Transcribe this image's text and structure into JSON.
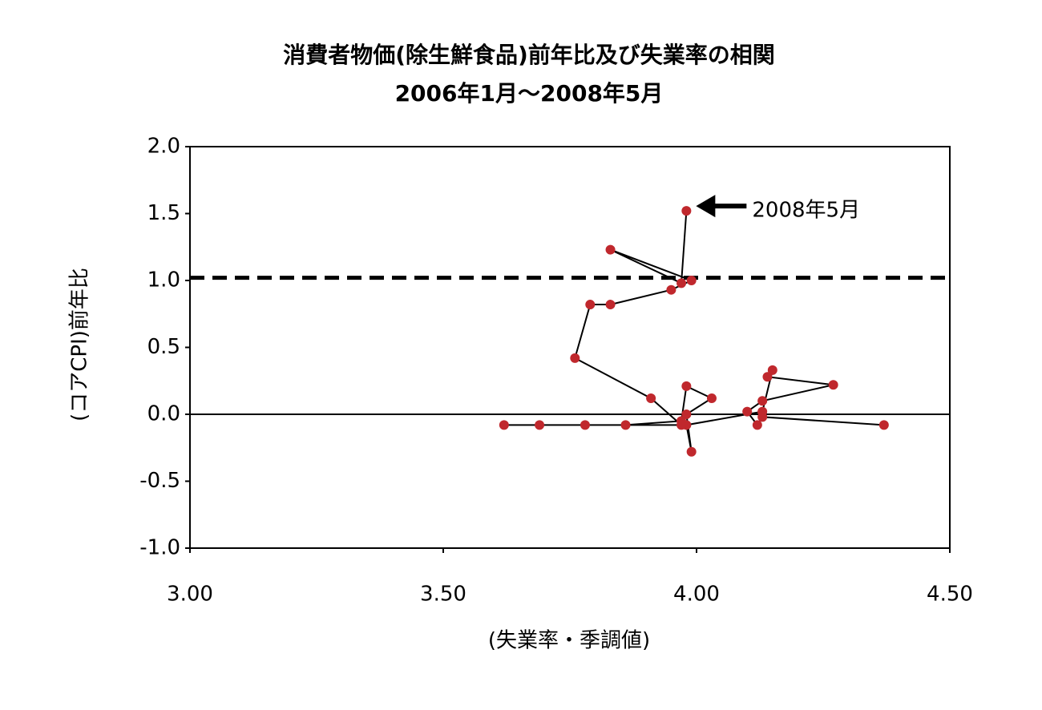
{
  "chart_data": {
    "type": "scatter",
    "title": "消費者物価(除生鮮食品)前年比及び失業率の相関",
    "subtitle": "2006年1月～2008年5月",
    "x_label": "(失業率・季調値)",
    "y_label": "(コアCPI)前年比",
    "annotation": "2008年5月",
    "connected": true,
    "x": [
      4.37,
      4.13,
      4.12,
      4.1,
      4.13,
      4.27,
      4.14,
      4.15,
      4.13,
      3.98,
      3.99,
      3.98,
      4.03,
      3.98,
      3.97,
      3.86,
      3.78,
      3.69,
      3.62,
      3.97,
      3.91,
      3.76,
      3.79,
      3.83,
      3.95,
      3.99,
      3.83,
      3.97,
      3.98
    ],
    "series": [
      {
        "color": "#c0282d",
        "line_color": "#000000",
        "values": [
          -0.08,
          -0.02,
          -0.08,
          0.02,
          0.1,
          0.22,
          0.28,
          0.33,
          0.02,
          -0.08,
          -0.28,
          0.0,
          0.12,
          0.21,
          -0.05,
          -0.08,
          -0.08,
          -0.08,
          -0.08,
          -0.08,
          0.12,
          0.42,
          0.82,
          0.82,
          0.93,
          1.0,
          1.23,
          0.98,
          1.52
        ]
      }
    ],
    "reference_lines": [
      {
        "value": 1.02,
        "style": "dashed"
      }
    ],
    "xlim": [
      3.0,
      4.5
    ],
    "ylim": [
      -1.0,
      2.0
    ],
    "xticks": [
      {
        "value": 3.0,
        "label": "3.00"
      },
      {
        "value": 3.5,
        "label": "3.50"
      },
      {
        "value": 4.0,
        "label": "4.00"
      },
      {
        "value": 4.5,
        "label": "4.50"
      }
    ],
    "yticks": [
      {
        "value": 2.0,
        "label": "2.0"
      },
      {
        "value": 1.5,
        "label": "1.5"
      },
      {
        "value": 1.0,
        "label": "1.0"
      },
      {
        "value": 0.5,
        "label": "0.5"
      },
      {
        "value": 0.0,
        "label": "0.0"
      },
      {
        "value": -0.5,
        "label": "-0.5"
      },
      {
        "value": -1.0,
        "label": "-1.0"
      }
    ]
  }
}
